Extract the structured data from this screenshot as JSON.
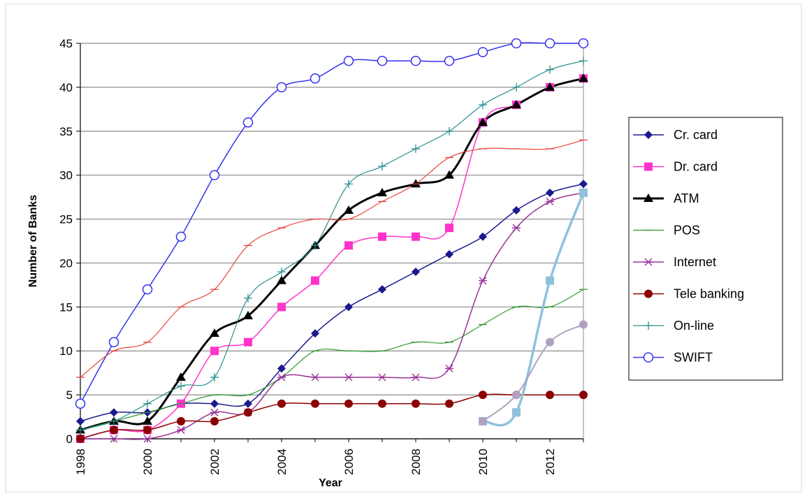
{
  "chart_data": {
    "type": "line",
    "title": "",
    "xlabel": "Year",
    "ylabel": "Number of Banks",
    "xlim": [
      1998,
      2013
    ],
    "ylim": [
      0,
      45
    ],
    "x_ticks": [
      "1998",
      "2000",
      "2002",
      "2004",
      "2006",
      "2008",
      "2010",
      "2012"
    ],
    "y_ticks": [
      "0",
      "5",
      "10",
      "15",
      "20",
      "25",
      "30",
      "35",
      "40",
      "45"
    ],
    "grid": "horizontal",
    "legend_position": "right",
    "series": [
      {
        "name": "Cr. card",
        "color": "#1a1a8c",
        "marker": "diamond",
        "width": 1.5,
        "x": [
          1998,
          1999,
          2000,
          2001,
          2002,
          2003,
          2004,
          2005,
          2006,
          2007,
          2008,
          2009,
          2010,
          2011,
          2012,
          2013
        ],
        "y": [
          2,
          3,
          3,
          4,
          4,
          4,
          8,
          12,
          15,
          17,
          19,
          21,
          23,
          26,
          28,
          29
        ]
      },
      {
        "name": "Dr. card",
        "color": "#ff33cc",
        "marker": "square",
        "width": 1.5,
        "x": [
          1998,
          1999,
          2000,
          2001,
          2002,
          2003,
          2004,
          2005,
          2006,
          2007,
          2008,
          2009,
          2010,
          2011,
          2012,
          2013
        ],
        "y": [
          0,
          1,
          1,
          4,
          10,
          11,
          15,
          18,
          22,
          23,
          23,
          24,
          36,
          38,
          40,
          41
        ]
      },
      {
        "name": "ATM",
        "color": "#000000",
        "marker": "triangle",
        "width": 3,
        "x": [
          1998,
          1999,
          2000,
          2001,
          2002,
          2003,
          2004,
          2005,
          2006,
          2007,
          2008,
          2009,
          2010,
          2011,
          2012,
          2013
        ],
        "y": [
          1,
          2,
          2,
          7,
          12,
          14,
          18,
          22,
          26,
          28,
          29,
          30,
          36,
          38,
          40,
          41
        ]
      },
      {
        "name": "POS",
        "color": "#339933",
        "marker": "dash",
        "width": 1.2,
        "x": [
          1998,
          1999,
          2000,
          2001,
          2002,
          2003,
          2004,
          2005,
          2006,
          2007,
          2008,
          2009,
          2010,
          2011,
          2012,
          2013
        ],
        "y": [
          1,
          2,
          3,
          4,
          5,
          5,
          7,
          10,
          10,
          10,
          11,
          11,
          13,
          15,
          15,
          17
        ]
      },
      {
        "name": "Internet",
        "color": "#993399",
        "marker": "star",
        "width": 1.5,
        "x": [
          1998,
          1999,
          2000,
          2001,
          2002,
          2003,
          2004,
          2005,
          2006,
          2007,
          2008,
          2009,
          2010,
          2011,
          2012,
          2013
        ],
        "y": [
          0,
          0,
          0,
          1,
          3,
          3,
          7,
          7,
          7,
          7,
          7,
          8,
          18,
          24,
          27,
          28
        ]
      },
      {
        "name": "Tele banking",
        "color": "#8b0000",
        "marker": "circle-filled",
        "width": 1.5,
        "x": [
          1998,
          1999,
          2000,
          2001,
          2002,
          2003,
          2004,
          2005,
          2006,
          2007,
          2008,
          2009,
          2010,
          2011,
          2012,
          2013
        ],
        "y": [
          0,
          1,
          1,
          2,
          2,
          3,
          4,
          4,
          4,
          4,
          4,
          4,
          5,
          5,
          5,
          5
        ]
      },
      {
        "name": "On-line",
        "color": "#2a8f8f",
        "marker": "plus",
        "width": 1.2,
        "x": [
          1998,
          1999,
          2000,
          2001,
          2002,
          2003,
          2004,
          2005,
          2006,
          2007,
          2008,
          2009,
          2010,
          2011,
          2012,
          2013
        ],
        "y": [
          1,
          2,
          4,
          6,
          7,
          16,
          19,
          22,
          29,
          31,
          33,
          35,
          38,
          40,
          42,
          43
        ]
      },
      {
        "name": "SWIFT",
        "color": "#3333ee",
        "marker": "circle-open",
        "width": 1.5,
        "x": [
          1998,
          1999,
          2000,
          2001,
          2002,
          2003,
          2004,
          2005,
          2006,
          2007,
          2008,
          2009,
          2010,
          2011,
          2012,
          2013
        ],
        "y": [
          4,
          11,
          17,
          23,
          30,
          36,
          40,
          41,
          43,
          43,
          43,
          43,
          44,
          45,
          45,
          45
        ]
      },
      {
        "name": "",
        "color": "#e8453c",
        "marker": "dash",
        "width": 1.2,
        "x": [
          1998,
          1999,
          2000,
          2001,
          2002,
          2003,
          2004,
          2005,
          2006,
          2007,
          2008,
          2009,
          2010,
          2011,
          2012,
          2013
        ],
        "y": [
          7,
          10,
          11,
          15,
          17,
          22,
          24,
          25,
          25,
          27,
          29,
          32,
          33,
          33,
          33,
          34
        ]
      },
      {
        "name": "",
        "color": "#8fc1dd",
        "marker": "square",
        "width": 3.5,
        "x": [
          2010,
          2011,
          2012,
          2013
        ],
        "y": [
          2,
          3,
          18,
          28
        ]
      },
      {
        "name": "",
        "color": "#b0a0c0",
        "marker": "circle-filled",
        "width": 2,
        "x": [
          2010,
          2011,
          2012,
          2013
        ],
        "y": [
          2,
          5,
          11,
          13
        ]
      }
    ]
  }
}
